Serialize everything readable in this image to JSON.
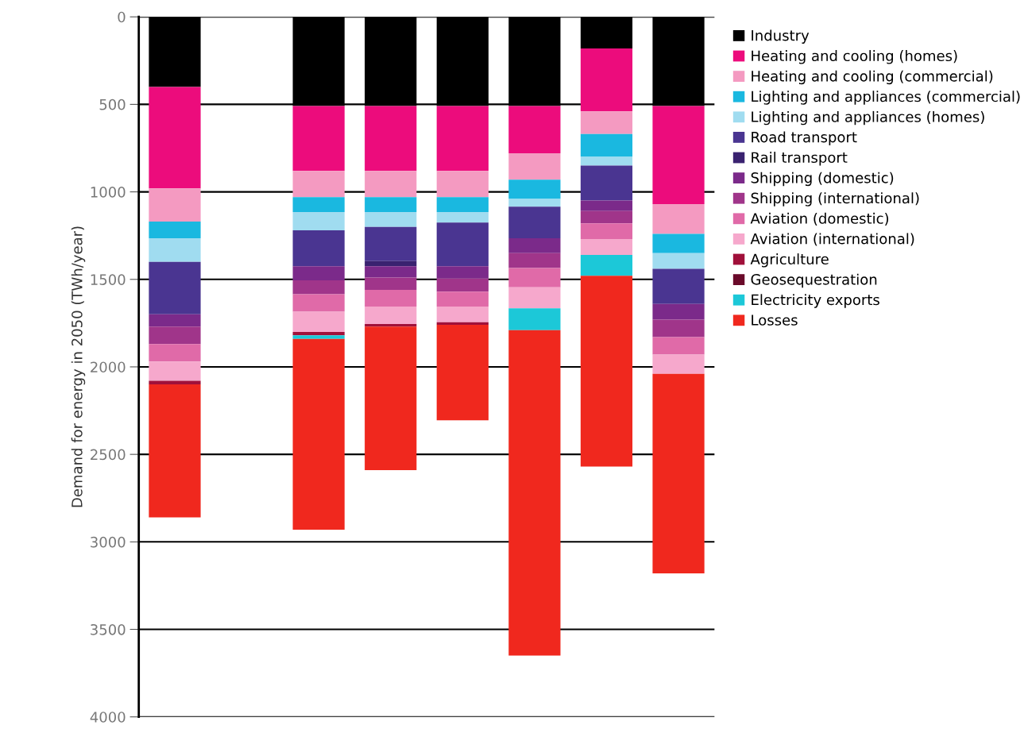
{
  "chart_data": {
    "type": "bar",
    "stacked": true,
    "ylabel": "Demand for energy in 2050 (TWh/year)",
    "categories": [
      null,
      null,
      null,
      null,
      null,
      null,
      null,
      null
    ],
    "ylim": [
      4000,
      0
    ],
    "yticks": [
      0,
      500,
      1000,
      1500,
      2000,
      2500,
      3000,
      3500,
      4000
    ],
    "grid": "y",
    "legend": "right",
    "tick_labels": "y",
    "series": [
      {
        "name": "Industry",
        "color": "#000000",
        "values": [
          400,
          null,
          510,
          510,
          510,
          510,
          180,
          510
        ]
      },
      {
        "name": "Heating and cooling (homes)",
        "color": "#ec0c7c",
        "values": [
          580,
          null,
          370,
          370,
          370,
          270,
          360,
          560
        ]
      },
      {
        "name": "Heating and cooling (commercial)",
        "color": "#f49ac1",
        "values": [
          190,
          null,
          150,
          150,
          150,
          150,
          130,
          170
        ]
      },
      {
        "name": "Lighting and appliances (commercial)",
        "color": "#1ab8e0",
        "values": [
          95,
          null,
          85,
          85,
          85,
          110,
          130,
          110
        ]
      },
      {
        "name": "Lighting and appliances (homes)",
        "color": "#a0dcf0",
        "values": [
          135,
          null,
          105,
          85,
          60,
          45,
          50,
          90
        ]
      },
      {
        "name": "Road transport",
        "color": "#4a3591",
        "values": [
          300,
          null,
          205,
          195,
          250,
          180,
          200,
          200
        ]
      },
      {
        "name": "Rail transport",
        "color": "#3a2270",
        "values": [
          0,
          null,
          0,
          30,
          0,
          0,
          0,
          0
        ]
      },
      {
        "name": "Shipping (domestic)",
        "color": "#7b2a8a",
        "values": [
          70,
          null,
          80,
          65,
          70,
          85,
          60,
          90
        ]
      },
      {
        "name": "Shipping (international)",
        "color": "#a0358a",
        "values": [
          100,
          null,
          80,
          70,
          75,
          85,
          70,
          100
        ]
      },
      {
        "name": "Aviation (domestic)",
        "color": "#e06aa8",
        "values": [
          100,
          null,
          100,
          95,
          85,
          110,
          90,
          100
        ]
      },
      {
        "name": "Aviation (international)",
        "color": "#f6a8cc",
        "values": [
          110,
          null,
          115,
          100,
          90,
          120,
          90,
          110
        ]
      },
      {
        "name": "Agriculture",
        "color": "#a0103a",
        "values": [
          20,
          null,
          20,
          15,
          15,
          0,
          0,
          0
        ]
      },
      {
        "name": "Geosequestration",
        "color": "#6a0a2a",
        "values": [
          0,
          null,
          0,
          0,
          0,
          0,
          0,
          0
        ]
      },
      {
        "name": "Electricity exports",
        "color": "#1cc8d8",
        "values": [
          0,
          null,
          20,
          0,
          0,
          125,
          120,
          0
        ]
      },
      {
        "name": "Losses",
        "color": "#f0281e",
        "values": [
          760,
          null,
          1090,
          820,
          545,
          1860,
          1090,
          1140
        ]
      }
    ]
  }
}
